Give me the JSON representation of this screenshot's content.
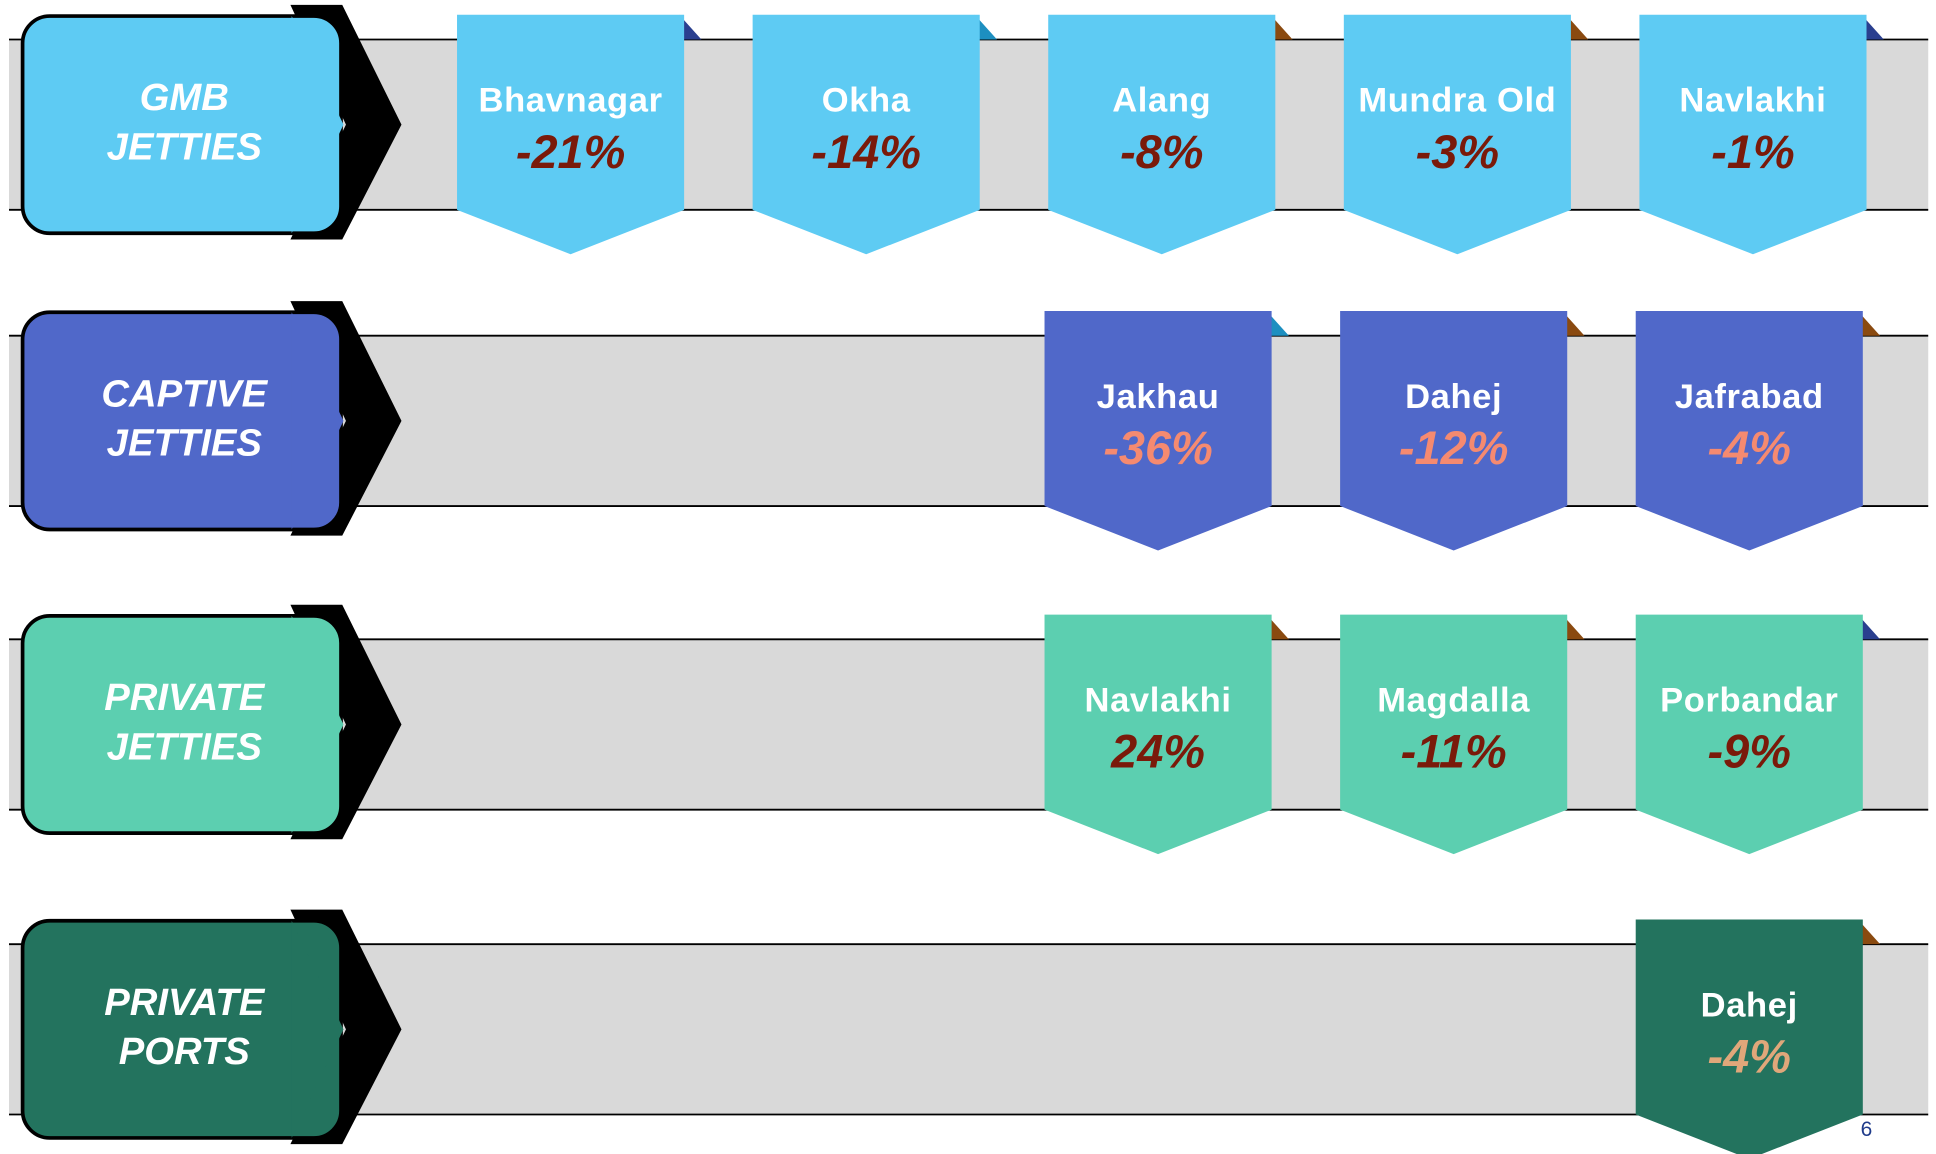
{
  "rows": [
    {
      "label": [
        "GMB",
        "JETTIES"
      ],
      "items": [
        {
          "name": "Bhavnagar",
          "change": "-21%"
        },
        {
          "name": "Okha",
          "change": "-14%"
        },
        {
          "name": "Alang",
          "change": "-8%"
        },
        {
          "name": "Mundra Old",
          "change": "-3%"
        },
        {
          "name": "Navlakhi",
          "change": "-1%"
        }
      ]
    },
    {
      "label": [
        "CAPTIVE",
        "JETTIES"
      ],
      "items": [
        {
          "name": "Jakhau",
          "change": "-36%"
        },
        {
          "name": "Dahej",
          "change": "-12%"
        },
        {
          "name": "Jafrabad",
          "change": "-4%"
        }
      ]
    },
    {
      "label": [
        "PRIVATE",
        "JETTIES"
      ],
      "items": [
        {
          "name": "Navlakhi",
          "change": "24%"
        },
        {
          "name": "Magdalla",
          "change": "-11%"
        },
        {
          "name": "Porbandar",
          "change": "-9%"
        }
      ]
    },
    {
      "label": [
        "PRIVATE",
        "PORTS"
      ],
      "items": [
        {
          "name": "Dahej",
          "change": "-4%"
        }
      ]
    }
  ],
  "page_number": "6"
}
